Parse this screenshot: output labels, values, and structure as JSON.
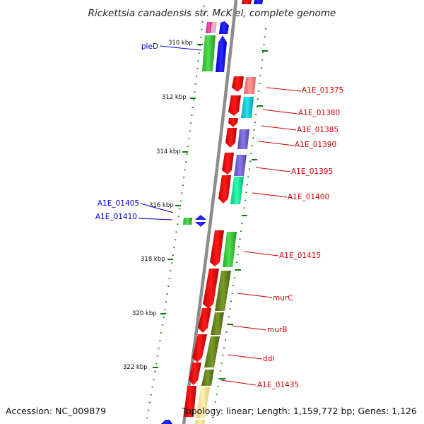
{
  "title": "Rickettsia canadensis str. McKiel, complete genome",
  "accession": "Accession: NC_009879",
  "summary": "Topology: linear; Length: 1,159,772 bp; Genes: 1,126",
  "axis_ticks": [
    "310 kbp",
    "312 kbp",
    "314 kbp",
    "316 kbp",
    "318 kbp",
    "320 kbp",
    "322 kbp"
  ],
  "gene_labels": {
    "pleD": "pleD",
    "A1E_01375": "A1E_01375",
    "A1E_01380": "A1E_01380",
    "A1E_01385": "A1E_01385",
    "A1E_01390": "A1E_01390",
    "A1E_01395": "A1E_01395",
    "A1E_01400": "A1E_01400",
    "A1E_01405": "A1E_01405",
    "A1E_01410": "A1E_01410",
    "A1E_01415": "A1E_01415",
    "murC": "murC",
    "murB": "murB",
    "ddl": "ddl",
    "A1E_01435": "A1E_01435"
  },
  "colors": {
    "forward_strand": "#ff0000",
    "reverse_strand": "#0000ff",
    "backbone": "#808080",
    "tick": "#007700",
    "label_forward": "#cc0000",
    "label_reverse": "#0000cc"
  }
}
